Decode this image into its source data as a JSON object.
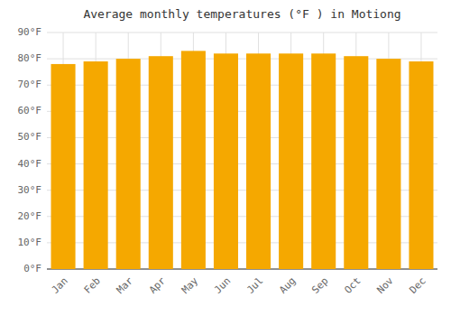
{
  "chart_data": {
    "type": "bar",
    "title": "Average monthly temperatures (°F ) in Motiong",
    "categories": [
      "Jan",
      "Feb",
      "Mar",
      "Apr",
      "May",
      "Jun",
      "Jul",
      "Aug",
      "Sep",
      "Oct",
      "Nov",
      "Dec"
    ],
    "values": [
      78,
      79,
      80,
      81,
      83,
      82,
      82,
      82,
      82,
      81,
      80,
      79
    ],
    "color": "#F5A800",
    "ylim": [
      0,
      90
    ],
    "yticks": [
      {
        "value": 0,
        "label": "0°F"
      },
      {
        "value": 10,
        "label": "10°F"
      },
      {
        "value": 20,
        "label": "20°F"
      },
      {
        "value": 30,
        "label": "30°F"
      },
      {
        "value": 40,
        "label": "40°F"
      },
      {
        "value": 50,
        "label": "50°F"
      },
      {
        "value": 60,
        "label": "60°F"
      },
      {
        "value": 70,
        "label": "70°F"
      },
      {
        "value": 80,
        "label": "80°F"
      },
      {
        "value": 90,
        "label": "90°F"
      }
    ],
    "grid": true
  }
}
